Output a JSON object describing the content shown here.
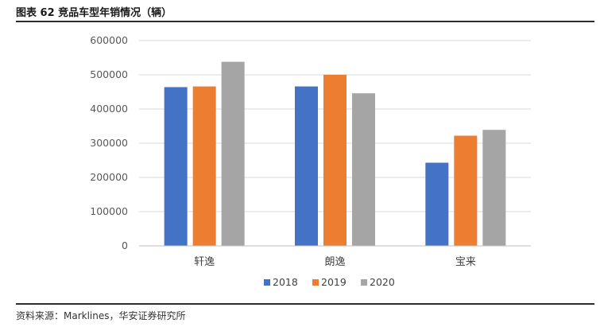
{
  "figure": {
    "title": "图表 62  竞品车型年销情况（辆）",
    "source": "资料来源：Marklines，华安证券研究所"
  },
  "colors": {
    "2018": "#4472C4",
    "2019": "#ED7D31",
    "2020": "#A5A5A5",
    "grid": "#D9D9D9"
  },
  "chart_data": {
    "type": "bar",
    "title": "竞品车型年销情况（辆）",
    "categories": [
      "轩逸",
      "朗逸",
      "宝来"
    ],
    "series": [
      {
        "name": "2018",
        "values": [
          464000,
          466000,
          243000
        ]
      },
      {
        "name": "2019",
        "values": [
          466000,
          500000,
          322000
        ]
      },
      {
        "name": "2020",
        "values": [
          538000,
          446000,
          339000
        ]
      }
    ],
    "yticks": [
      "0",
      "100000",
      "200000",
      "300000",
      "400000",
      "500000",
      "600000"
    ],
    "ylim": [
      0,
      600000
    ],
    "xlabel": "",
    "ylabel": "",
    "legend": "bottom"
  }
}
